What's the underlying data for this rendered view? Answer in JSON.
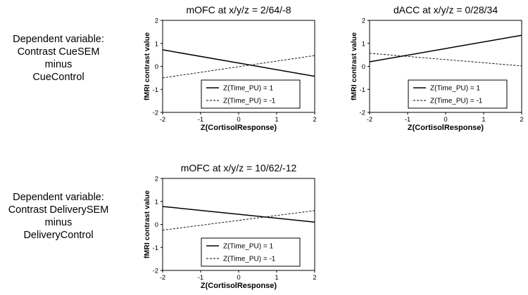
{
  "row_labels": [
    {
      "lines": [
        "Dependent variable:",
        "Contrast CueSEM",
        "minus",
        "CueControl"
      ]
    },
    {
      "lines": [
        "Dependent variable:",
        "Contrast DeliverySEM",
        "minus",
        "DeliveryControl"
      ]
    }
  ],
  "chart_data": [
    {
      "type": "line",
      "title": "mOFC at x/y/z = 2/64/-8",
      "xlabel": "Z(CortisolResponse)",
      "ylabel": "fMRI contrast value",
      "xlim": [
        -2,
        2
      ],
      "ylim": [
        -2,
        2
      ],
      "xticks": [
        "-2",
        "-1",
        "0",
        "1",
        "2"
      ],
      "yticks": [
        "2",
        "1",
        "0",
        "-1",
        "-2"
      ],
      "grid": false,
      "legend_position": "bottom-center",
      "series": [
        {
          "name": "Z(Time_PU) = 1",
          "style": "solid",
          "x": [
            -2,
            2
          ],
          "y": [
            0.72,
            -0.43
          ]
        },
        {
          "name": "Z(Time_PU) = -1",
          "style": "dashed",
          "x": [
            -2,
            2
          ],
          "y": [
            -0.5,
            0.47
          ]
        }
      ]
    },
    {
      "type": "line",
      "title": "dACC at x/y/z = 0/28/34",
      "xlabel": "Z(CortisolResponse)",
      "ylabel": "fMRI contrast value",
      "xlim": [
        -2,
        2
      ],
      "ylim": [
        -2,
        2
      ],
      "xticks": [
        "-2",
        "-1",
        "0",
        "1",
        "2"
      ],
      "yticks": [
        "2",
        "1",
        "0",
        "-1",
        "-2"
      ],
      "grid": false,
      "legend_position": "bottom-center",
      "series": [
        {
          "name": "Z(Time_PU) = 1",
          "style": "solid",
          "x": [
            -2,
            2
          ],
          "y": [
            0.2,
            1.35
          ]
        },
        {
          "name": "Z(Time_PU) = -1",
          "style": "dashed",
          "x": [
            -2,
            2
          ],
          "y": [
            0.57,
            0.02
          ]
        }
      ]
    },
    {
      "type": "line",
      "title": "mOFC at x/y/z = 10/62/-12",
      "xlabel": "Z(CortisolResponse)",
      "ylabel": "fMRI contrast value",
      "xlim": [
        -2,
        2
      ],
      "ylim": [
        -2,
        2
      ],
      "xticks": [
        "-2",
        "-1",
        "0",
        "1",
        "2"
      ],
      "yticks": [
        "2",
        "1",
        "0",
        "-1",
        "-2"
      ],
      "grid": false,
      "legend_position": "bottom-center",
      "series": [
        {
          "name": "Z(Time_PU) = 1",
          "style": "solid",
          "x": [
            -2,
            2
          ],
          "y": [
            0.78,
            0.1
          ]
        },
        {
          "name": "Z(Time_PU) = -1",
          "style": "dashed",
          "x": [
            -2,
            2
          ],
          "y": [
            -0.25,
            0.6
          ]
        }
      ]
    }
  ]
}
